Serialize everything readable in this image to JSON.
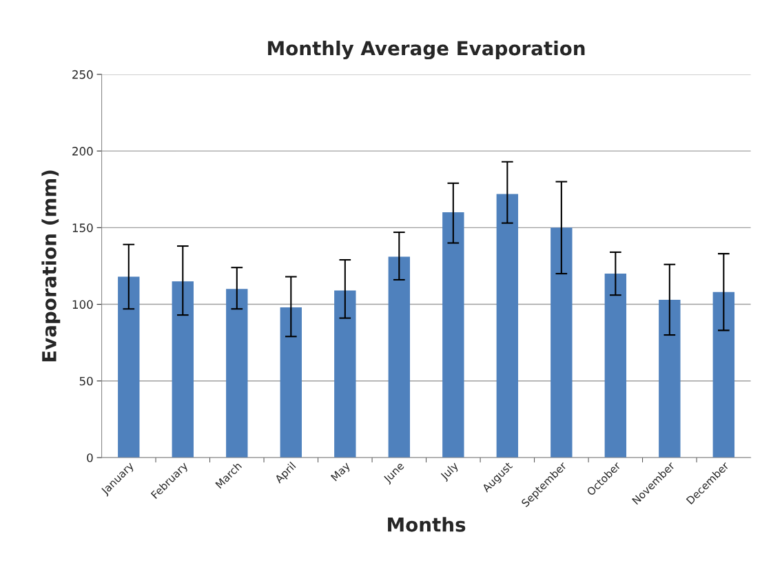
{
  "chart_data": {
    "type": "bar",
    "title": "Monthly Average Evaporation",
    "xlabel": "Months",
    "ylabel": "Evaporation (mm)",
    "categories": [
      "January",
      "February",
      "March",
      "April",
      "May",
      "June",
      "July",
      "August",
      "September",
      "October",
      "November",
      "December"
    ],
    "values": [
      118,
      115,
      110,
      98,
      109,
      131,
      160,
      172,
      150,
      120,
      103,
      108
    ],
    "errors": [
      [
        97,
        139
      ],
      [
        93,
        138
      ],
      [
        97,
        124
      ],
      [
        79,
        118
      ],
      [
        91,
        129
      ],
      [
        116,
        147
      ],
      [
        140,
        179
      ],
      [
        153,
        193
      ],
      [
        120,
        180
      ],
      [
        106,
        134
      ],
      [
        80,
        126
      ],
      [
        83,
        133
      ]
    ],
    "color": "#4f81bd",
    "ylim": [
      0,
      250
    ],
    "yticks": [
      0,
      50,
      100,
      150,
      200,
      250
    ],
    "grid": "y",
    "legend": false
  }
}
